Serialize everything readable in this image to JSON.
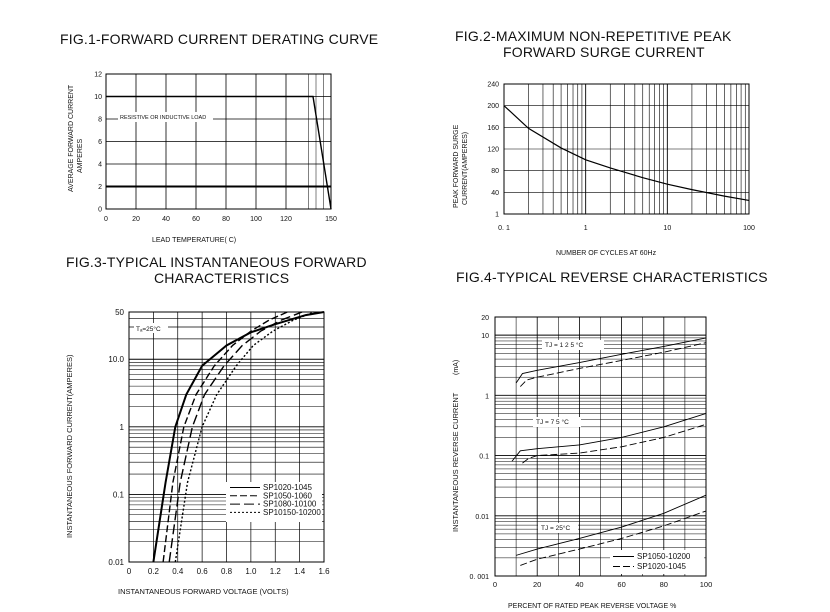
{
  "titles": {
    "fig1": "FIG.1-FORWARD CURRENT DERATING CURVE",
    "fig2_line1": "FIG.2-MAXIMUM NON-REPETITIVE PEAK",
    "fig2_line2": "FORWARD SURGE CURRENT",
    "fig3_line1": "FIG.3-TYPICAL INSTANTANEOUS FORWARD",
    "fig3_line2": "CHARACTERISTICS",
    "fig4": "FIG.4-TYPICAL REVERSE CHARACTERISTICS"
  },
  "chart_data": [
    {
      "id": "fig1",
      "type": "line",
      "ylabel_line1": "AVERAGE FORWARD CURRENT",
      "ylabel_line2": "AMPERES",
      "xlabel": "LEAD  TEMPERATURE(  C)",
      "xlim": [
        0,
        150
      ],
      "ylim": [
        0,
        12
      ],
      "xticks": [
        "0",
        "20",
        "40",
        "60",
        "80",
        "100",
        "120",
        "150"
      ],
      "yticks": [
        "0",
        "2",
        "4",
        "6",
        "8",
        "10",
        "12"
      ],
      "grid": true,
      "annotation": "RESISTIVE OR INDUCTIVE LOAD",
      "series": [
        {
          "x": [
            0,
            138,
            150
          ],
          "y": [
            10,
            10,
            0
          ]
        },
        {
          "x": [
            0,
            150
          ],
          "y": [
            2,
            2
          ]
        }
      ]
    },
    {
      "id": "fig2",
      "type": "line",
      "ylabel_line1": "PEAK FORWARD SURGE",
      "ylabel_line2": "CURRENT(AMPERES)",
      "xlabel": "NUMBER OF CYCLES AT 60Hz",
      "scale_x": "log",
      "xlim": [
        0.1,
        100
      ],
      "ylim": [
        0,
        240
      ],
      "xticks": [
        "0. 1",
        "1",
        "10",
        "100"
      ],
      "yticks": [
        "1",
        "40",
        "80",
        "120",
        "160",
        "200",
        "240"
      ],
      "grid": true,
      "series": [
        {
          "x": [
            0.1,
            0.2,
            0.5,
            1,
            2,
            5,
            10,
            20,
            50,
            100
          ],
          "y": [
            200,
            158,
            122,
            100,
            85,
            67,
            55,
            45,
            33,
            25
          ]
        }
      ]
    },
    {
      "id": "fig3",
      "type": "line",
      "ylabel": "INSTANTANEOUS FORWARD CURRENT(AMPERES)",
      "xlabel": "INSTANTANEOUS FORWARD VOLTAGE (VOLTS)",
      "scale_y": "log",
      "xlim": [
        0,
        1.6
      ],
      "ylim": [
        0.01,
        50
      ],
      "xticks": [
        "0",
        "0.2",
        "0.4",
        "0.6",
        "0.8",
        "1.0",
        "1.2",
        "1.4",
        "1.6"
      ],
      "yticks": [
        "0.01",
        "0.1",
        "1",
        "10.0",
        "50"
      ],
      "grid": true,
      "annotation": "Tₐ=25°C",
      "series": [
        {
          "name": "SP1020-1045",
          "style": "solid",
          "x": [
            0.2,
            0.3,
            0.38,
            0.47,
            0.6,
            0.8,
            1.0,
            1.2,
            1.45,
            1.6
          ],
          "y": [
            0.01,
            0.15,
            1,
            3,
            8,
            16,
            25,
            33,
            45,
            50
          ]
        },
        {
          "name": "SP1050-1060",
          "style": "dash",
          "x": [
            0.28,
            0.36,
            0.45,
            0.55,
            0.7,
            0.85,
            1.0,
            1.15,
            1.3
          ],
          "y": [
            0.01,
            0.15,
            1,
            3,
            8,
            16,
            26,
            38,
            50
          ]
        },
        {
          "name": "SP1080-10100",
          "style": "longdash",
          "x": [
            0.33,
            0.42,
            0.52,
            0.62,
            0.78,
            0.93,
            1.08,
            1.25,
            1.42
          ],
          "y": [
            0.01,
            0.15,
            1,
            3,
            8,
            16,
            26,
            38,
            50
          ]
        },
        {
          "name": "SP10150-10200",
          "style": "dot",
          "x": [
            0.38,
            0.48,
            0.6,
            0.72,
            0.88,
            1.02,
            1.18,
            1.35,
            1.52
          ],
          "y": [
            0.01,
            0.15,
            1,
            3,
            8,
            16,
            26,
            38,
            50
          ]
        }
      ]
    },
    {
      "id": "fig4",
      "type": "line",
      "ylabel": "INSTANTANEOUS REVERSE CURRENT",
      "yunit": "(mA)",
      "xlabel": "PERCENT OF RATED PEAK REVERSE VOLTAGE %",
      "scale_y": "log",
      "xlim": [
        0,
        100
      ],
      "ylim": [
        0.001,
        20
      ],
      "xticks": [
        "0",
        "20",
        "40",
        "60",
        "80",
        "100"
      ],
      "yticks": [
        "0. 001",
        "0.01",
        "0.1",
        "1",
        "10",
        "20"
      ],
      "grid": true,
      "annotations": [
        "TJ = 1 2 5 °C",
        "TJ = 7 5 °C",
        "TJ = 25°C"
      ],
      "series": [
        {
          "name": "SP1050-10200",
          "style": "solid",
          "groups": [
            {
              "x": [
                10,
                13,
                20,
                40,
                60,
                80,
                100
              ],
              "y": [
                1.6,
                2.3,
                2.6,
                3.5,
                4.8,
                6.5,
                9
              ]
            },
            {
              "x": [
                8,
                12,
                20,
                40,
                60,
                80,
                100
              ],
              "y": [
                0.08,
                0.12,
                0.13,
                0.15,
                0.2,
                0.3,
                0.5
              ]
            },
            {
              "x": [
                10,
                20,
                40,
                60,
                80,
                100
              ],
              "y": [
                0.0022,
                0.0028,
                0.0042,
                0.0065,
                0.011,
                0.022
              ]
            }
          ]
        },
        {
          "name": "SP1020-1045",
          "style": "dash",
          "groups": [
            {
              "x": [
                12,
                15,
                20,
                40,
                60,
                80,
                100
              ],
              "y": [
                1.4,
                1.8,
                2.0,
                2.8,
                3.8,
                5.2,
                7.5
              ]
            },
            {
              "x": [
                13,
                16,
                20,
                40,
                60,
                80,
                100
              ],
              "y": [
                0.075,
                0.09,
                0.1,
                0.11,
                0.14,
                0.2,
                0.33
              ]
            },
            {
              "x": [
                12,
                20,
                40,
                60,
                80,
                100
              ],
              "y": [
                0.0015,
                0.0019,
                0.0028,
                0.0042,
                0.0068,
                0.012
              ]
            }
          ]
        }
      ]
    }
  ]
}
